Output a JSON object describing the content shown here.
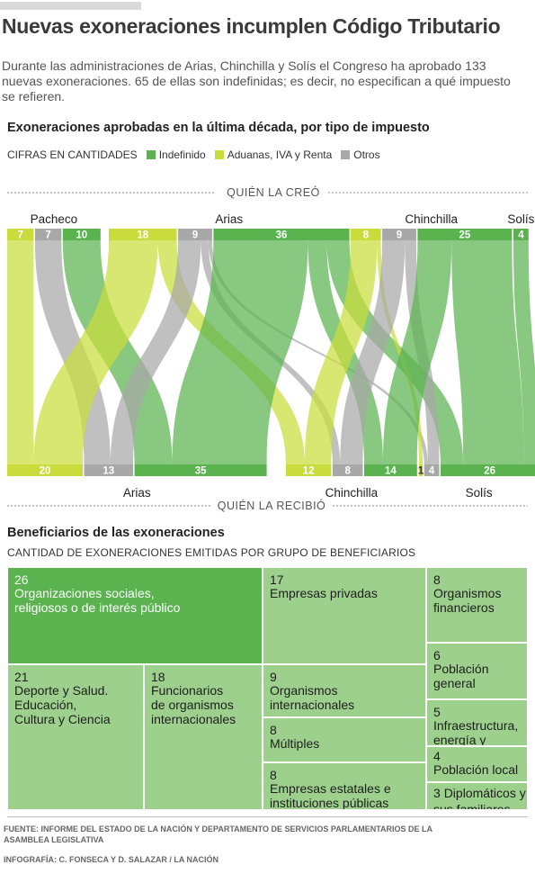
{
  "header": {
    "title": "Nuevas exoneraciones incumplen Código Tributario",
    "dek": "Durante las administraciones de Arias, Chinchilla y Solís el Congreso ha aprobado 133 nuevas exoneraciones. 65 de ellas son indefinidas; es decir, no especifican a qué impuesto se refieren."
  },
  "colors": {
    "indefinido": "#5bb350",
    "aduanas": "#c9dc3c",
    "otros": "#a8a8a8"
  },
  "chart_data": [
    {
      "type": "sankey",
      "title": "Exoneraciones aprobadas en la última década, por tipo de impuesto",
      "subtitle": "CIFRAS EN CANTIDADES",
      "top_axis_label": "QUIÉN LA CREÓ",
      "bottom_axis_label": "QUIÉN LA RECIBIÓ",
      "legend": [
        {
          "key": "aduanas",
          "label": "Indefinido",
          "swatch": "indefinido"
        },
        {
          "key": "aduanas",
          "label": "Aduanas, IVA y Renta",
          "swatch": "aduanas"
        },
        {
          "key": "otros",
          "label": "Otros",
          "swatch": "otros"
        }
      ],
      "creators": [
        {
          "name": "Pacheco",
          "values": {
            "aduanas": 7,
            "otros": 7,
            "indefinido": 10
          }
        },
        {
          "name": "Arias",
          "values": {
            "aduanas": 18,
            "otros": 9,
            "indefinido": 36
          }
        },
        {
          "name": "Chinchilla",
          "values": {
            "aduanas": 8,
            "otros": 9,
            "indefinido": 25
          }
        },
        {
          "name": "Solís",
          "values": {
            "aduanas": 0,
            "otros": 0,
            "indefinido": 4
          }
        }
      ],
      "recipients": [
        {
          "name": "Arias",
          "values": {
            "aduanas": 20,
            "otros": 13,
            "indefinido": 35
          }
        },
        {
          "name": "Chinchilla",
          "values": {
            "aduanas": 12,
            "otros": 8,
            "indefinido": 14
          }
        },
        {
          "name": "Solís",
          "values": {
            "aduanas": 1,
            "otros": 4,
            "indefinido": 26
          }
        }
      ],
      "flows": [
        {
          "from": "Pacheco",
          "to": "Arias",
          "type": "aduanas",
          "value": 7
        },
        {
          "from": "Pacheco",
          "to": "Arias",
          "type": "otros",
          "value": 7
        },
        {
          "from": "Pacheco",
          "to": "Arias",
          "type": "indefinido",
          "value": 10
        },
        {
          "from": "Arias",
          "to": "Arias",
          "type": "aduanas",
          "value": 13
        },
        {
          "from": "Arias",
          "to": "Chinchilla",
          "type": "aduanas",
          "value": 5
        },
        {
          "from": "Arias",
          "to": "Arias",
          "type": "otros",
          "value": 6
        },
        {
          "from": "Arias",
          "to": "Chinchilla",
          "type": "otros",
          "value": 2
        },
        {
          "from": "Arias",
          "to": "Solís",
          "type": "otros",
          "value": 1
        },
        {
          "from": "Arias",
          "to": "Arias",
          "type": "indefinido",
          "value": 25
        },
        {
          "from": "Arias",
          "to": "Chinchilla",
          "type": "indefinido",
          "value": 5
        },
        {
          "from": "Arias",
          "to": "Solís",
          "type": "indefinido",
          "value": 6
        },
        {
          "from": "Chinchilla",
          "to": "Chinchilla",
          "type": "aduanas",
          "value": 7
        },
        {
          "from": "Chinchilla",
          "to": "Solís",
          "type": "aduanas",
          "value": 1
        },
        {
          "from": "Chinchilla",
          "to": "Chinchilla",
          "type": "otros",
          "value": 6
        },
        {
          "from": "Chinchilla",
          "to": "Solís",
          "type": "otros",
          "value": 3
        },
        {
          "from": "Chinchilla",
          "to": "Chinchilla",
          "type": "indefinido",
          "value": 9
        },
        {
          "from": "Chinchilla",
          "to": "Solís",
          "type": "indefinido",
          "value": 16
        },
        {
          "from": "Solís",
          "to": "Solís",
          "type": "indefinido",
          "value": 4
        }
      ]
    },
    {
      "type": "treemap",
      "title": "Beneficiarios de las exoneraciones",
      "subtitle": "CANTIDAD DE EXONERACIONES EMITIDAS POR GRUPO DE BENEFICIARIOS",
      "items": [
        {
          "label": "Organizaciones sociales, religiosos o de interés público",
          "lines": "Organizaciones sociales,\nreligiosos o de interés público",
          "value": 26,
          "color": "#5bb350"
        },
        {
          "label": "Deporte y Salud. Educación, Cultura y Ciencia",
          "lines": "Deporte y Salud.\nEducación,\nCultura y Ciencia",
          "value": 21,
          "color": "#9dd08c"
        },
        {
          "label": "Funcionarios de organismos internacionales",
          "lines": "Funcionarios\nde organismos\ninternacionales",
          "value": 18,
          "color": "#9dd08c"
        },
        {
          "label": "Empresas privadas",
          "lines": "Empresas privadas",
          "value": 17,
          "color": "#9dd08c"
        },
        {
          "label": "Organismos internacionales",
          "lines": "Organismos\ninternacionales",
          "value": 9,
          "color": "#9dd08c"
        },
        {
          "label": "Múltiples",
          "lines": "Múltiples",
          "value": 8,
          "color": "#9dd08c"
        },
        {
          "label": "Empresas estatales e instituciones públicas",
          "lines": "Empresas estatales e\ninstituciones públicas",
          "value": 8,
          "color": "#9dd08c"
        },
        {
          "label": "Organismos financieros",
          "lines": "Organismos\nfinancieros",
          "value": 8,
          "color": "#9dd08c"
        },
        {
          "label": "Población general",
          "lines": "Población\ngeneral",
          "value": 6,
          "color": "#9dd08c"
        },
        {
          "label": "Infraestructura, energía y acued.",
          "lines": "Infraestructura,\nenergía y acued.",
          "value": 5,
          "color": "#9dd08c"
        },
        {
          "label": "Población local",
          "lines": "Población local",
          "value": 4,
          "color": "#9dd08c"
        },
        {
          "label": "Diplomáticos y sus familiares",
          "lines": "Diplomáticos y\nsus familiares",
          "value": 3,
          "color": "#9dd08c"
        }
      ]
    }
  ],
  "footer": {
    "source": "FUENTE: INFORME DEL ESTADO DE LA NACIÓN Y DEPARTAMENTO DE SERVICIOS PARLAMENTARIOS DE LA ASAMBLEA LEGISLATIVA",
    "credit": "INFOGRAFÍA: C. FONSECA Y D. SALAZAR / LA NACIÓN"
  }
}
